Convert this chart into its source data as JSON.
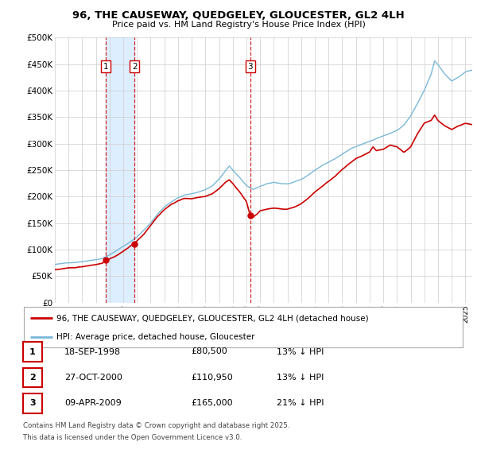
{
  "title": "96, THE CAUSEWAY, QUEDGELEY, GLOUCESTER, GL2 4LH",
  "subtitle": "Price paid vs. HM Land Registry's House Price Index (HPI)",
  "ylim": [
    0,
    500000
  ],
  "yticks": [
    0,
    50000,
    100000,
    150000,
    200000,
    250000,
    300000,
    350000,
    400000,
    450000,
    500000
  ],
  "ytick_labels": [
    "£0",
    "£50K",
    "£100K",
    "£150K",
    "£200K",
    "£250K",
    "£300K",
    "£350K",
    "£400K",
    "£450K",
    "£500K"
  ],
  "hpi_color": "#7ab8d8",
  "price_color": "#cc0000",
  "background_color": "#ffffff",
  "grid_color": "#cccccc",
  "shade_color": "#ddeeff",
  "transaction_prices": [
    80500,
    110950,
    165000
  ],
  "transaction_decimal_dates": [
    1998.708,
    2000.833,
    2009.275
  ],
  "transaction_labels": [
    "1",
    "2",
    "3"
  ],
  "legend_label_price": "96, THE CAUSEWAY, QUEDGELEY, GLOUCESTER, GL2 4LH (detached house)",
  "legend_label_hpi": "HPI: Average price, detached house, Gloucester",
  "table_rows": [
    [
      "1",
      "18-SEP-1998",
      "£80,500",
      "13% ↓ HPI"
    ],
    [
      "2",
      "27-OCT-2000",
      "£110,950",
      "13% ↓ HPI"
    ],
    [
      "3",
      "09-APR-2009",
      "£165,000",
      "21% ↓ HPI"
    ]
  ],
  "footnote1": "Contains HM Land Registry data © Crown copyright and database right 2025.",
  "footnote2": "This data is licensed under the Open Government Licence v3.0.",
  "xlim_start": 1995.0,
  "xlim_end": 2025.5,
  "hpi_anchors": [
    [
      1995.0,
      72000
    ],
    [
      1995.5,
      73000
    ],
    [
      1996.0,
      74500
    ],
    [
      1996.5,
      76000
    ],
    [
      1997.0,
      78000
    ],
    [
      1997.5,
      80000
    ],
    [
      1998.0,
      82000
    ],
    [
      1998.5,
      85000
    ],
    [
      1999.0,
      92000
    ],
    [
      1999.5,
      100000
    ],
    [
      2000.0,
      108000
    ],
    [
      2000.5,
      116000
    ],
    [
      2001.0,
      125000
    ],
    [
      2001.5,
      138000
    ],
    [
      2002.0,
      152000
    ],
    [
      2002.5,
      168000
    ],
    [
      2003.0,
      182000
    ],
    [
      2003.5,
      192000
    ],
    [
      2004.0,
      200000
    ],
    [
      2004.5,
      205000
    ],
    [
      2005.0,
      207000
    ],
    [
      2005.5,
      210000
    ],
    [
      2006.0,
      215000
    ],
    [
      2006.5,
      222000
    ],
    [
      2007.0,
      235000
    ],
    [
      2007.5,
      252000
    ],
    [
      2007.75,
      260000
    ],
    [
      2008.0,
      252000
    ],
    [
      2008.5,
      238000
    ],
    [
      2009.0,
      222000
    ],
    [
      2009.5,
      215000
    ],
    [
      2010.0,
      220000
    ],
    [
      2010.5,
      225000
    ],
    [
      2011.0,
      228000
    ],
    [
      2011.5,
      226000
    ],
    [
      2012.0,
      225000
    ],
    [
      2012.5,
      228000
    ],
    [
      2013.0,
      232000
    ],
    [
      2013.5,
      240000
    ],
    [
      2014.0,
      250000
    ],
    [
      2014.5,
      258000
    ],
    [
      2015.0,
      265000
    ],
    [
      2015.5,
      272000
    ],
    [
      2016.0,
      280000
    ],
    [
      2016.5,
      288000
    ],
    [
      2017.0,
      295000
    ],
    [
      2017.5,
      300000
    ],
    [
      2018.0,
      305000
    ],
    [
      2018.5,
      310000
    ],
    [
      2019.0,
      315000
    ],
    [
      2019.5,
      320000
    ],
    [
      2020.0,
      325000
    ],
    [
      2020.5,
      335000
    ],
    [
      2021.0,
      352000
    ],
    [
      2021.5,
      375000
    ],
    [
      2022.0,
      400000
    ],
    [
      2022.5,
      430000
    ],
    [
      2022.75,
      455000
    ],
    [
      2023.0,
      448000
    ],
    [
      2023.5,
      430000
    ],
    [
      2024.0,
      418000
    ],
    [
      2024.5,
      425000
    ],
    [
      2025.0,
      435000
    ],
    [
      2025.5,
      438000
    ]
  ],
  "price_anchors": [
    [
      1995.0,
      62000
    ],
    [
      1995.5,
      63000
    ],
    [
      1996.0,
      64500
    ],
    [
      1996.5,
      65500
    ],
    [
      1997.0,
      67000
    ],
    [
      1997.5,
      69000
    ],
    [
      1998.0,
      71000
    ],
    [
      1998.5,
      74000
    ],
    [
      1998.708,
      80500
    ],
    [
      1999.0,
      82000
    ],
    [
      1999.5,
      87000
    ],
    [
      2000.0,
      95000
    ],
    [
      2000.5,
      105000
    ],
    [
      2000.833,
      110950
    ],
    [
      2001.0,
      115000
    ],
    [
      2001.5,
      128000
    ],
    [
      2002.0,
      145000
    ],
    [
      2002.5,
      162000
    ],
    [
      2003.0,
      175000
    ],
    [
      2003.5,
      185000
    ],
    [
      2004.0,
      192000
    ],
    [
      2004.5,
      196000
    ],
    [
      2005.0,
      196000
    ],
    [
      2005.5,
      198000
    ],
    [
      2006.0,
      200000
    ],
    [
      2006.5,
      205000
    ],
    [
      2007.0,
      215000
    ],
    [
      2007.5,
      228000
    ],
    [
      2007.75,
      232000
    ],
    [
      2008.0,
      225000
    ],
    [
      2008.5,
      210000
    ],
    [
      2009.0,
      192000
    ],
    [
      2009.25,
      168000
    ],
    [
      2009.275,
      165000
    ],
    [
      2009.5,
      163000
    ],
    [
      2009.75,
      168000
    ],
    [
      2010.0,
      175000
    ],
    [
      2010.5,
      178000
    ],
    [
      2011.0,
      180000
    ],
    [
      2011.5,
      178000
    ],
    [
      2012.0,
      178000
    ],
    [
      2012.5,
      182000
    ],
    [
      2013.0,
      188000
    ],
    [
      2013.5,
      198000
    ],
    [
      2014.0,
      210000
    ],
    [
      2014.5,
      220000
    ],
    [
      2015.0,
      230000
    ],
    [
      2015.5,
      240000
    ],
    [
      2016.0,
      252000
    ],
    [
      2016.5,
      262000
    ],
    [
      2017.0,
      272000
    ],
    [
      2017.5,
      278000
    ],
    [
      2018.0,
      285000
    ],
    [
      2018.25,
      295000
    ],
    [
      2018.5,
      288000
    ],
    [
      2019.0,
      290000
    ],
    [
      2019.5,
      298000
    ],
    [
      2020.0,
      295000
    ],
    [
      2020.5,
      285000
    ],
    [
      2021.0,
      295000
    ],
    [
      2021.5,
      320000
    ],
    [
      2022.0,
      340000
    ],
    [
      2022.5,
      345000
    ],
    [
      2022.75,
      355000
    ],
    [
      2023.0,
      345000
    ],
    [
      2023.5,
      335000
    ],
    [
      2024.0,
      328000
    ],
    [
      2024.5,
      335000
    ],
    [
      2025.0,
      340000
    ],
    [
      2025.5,
      338000
    ]
  ]
}
